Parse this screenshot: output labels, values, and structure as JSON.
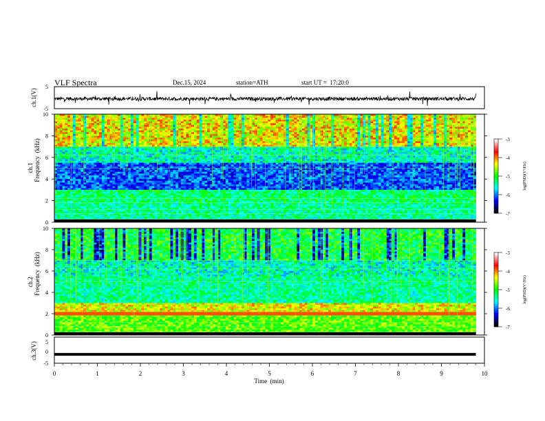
{
  "header": {
    "title": "VLF Spectra",
    "date": "Dec.15, 2024",
    "station": "station=ATH",
    "start_ut": "start UT =  17:20:0"
  },
  "colors": {
    "colormap": [
      "#000000",
      "#0000ff",
      "#00ffff",
      "#00ff00",
      "#ffff00",
      "#ff0000",
      "#ffffff"
    ]
  },
  "chart_data": [
    {
      "type": "line",
      "title": "",
      "ylabel": "ch.1(V)",
      "ylim": [
        -5,
        5
      ],
      "yticks": [
        "5",
        "-5"
      ],
      "xlim": [
        0,
        10
      ],
      "note_series": "noisy waveform around -0.5 V over 0 to 9.8 min"
    },
    {
      "type": "heatmap",
      "title": "",
      "ylabel": "ch.1\nFrequency (kHz)",
      "ylabel_lines": [
        "ch.1",
        "Frequency  (kHz)"
      ],
      "ylim": [
        0,
        10
      ],
      "yticks": [
        "0",
        "2",
        "4",
        "6",
        "8",
        "10"
      ],
      "xlim": [
        0,
        10
      ],
      "data_xmax": 9.8,
      "colorbar": {
        "label": "log(PSD)(V²/Hz)",
        "range": [
          -7,
          -3
        ],
        "ticks": [
          "-3",
          "-4",
          "-5",
          "-6",
          "-7"
        ]
      }
    },
    {
      "type": "heatmap",
      "title": "",
      "ylabel": "ch.2\nFrequency (kHz)",
      "ylabel_lines": [
        "ch.2",
        "Frequency  (kHz)"
      ],
      "ylim": [
        0,
        10
      ],
      "yticks": [
        "0",
        "2",
        "4",
        "6",
        "8",
        "10"
      ],
      "xlim": [
        0,
        10
      ],
      "data_xmax": 9.8,
      "colorbar": {
        "label": "log(PSD)(V²/Hz)",
        "range": [
          -7,
          -3
        ],
        "ticks": [
          "-3",
          "-4",
          "-5",
          "-6",
          "-7"
        ]
      }
    },
    {
      "type": "line",
      "title": "",
      "ylabel": "ch.3(V)",
      "ylim": [
        -5,
        5
      ],
      "yticks": [
        "5",
        "0",
        "-5"
      ],
      "xlim": [
        0,
        10
      ],
      "xlabel": "Time  (min)",
      "xticks": [
        "0",
        "1",
        "2",
        "3",
        "4",
        "5",
        "6",
        "7",
        "8",
        "9",
        "10"
      ],
      "series": [
        {
          "x": [
            0,
            9.8
          ],
          "y": [
            -1.6,
            -1.6
          ]
        }
      ]
    }
  ]
}
